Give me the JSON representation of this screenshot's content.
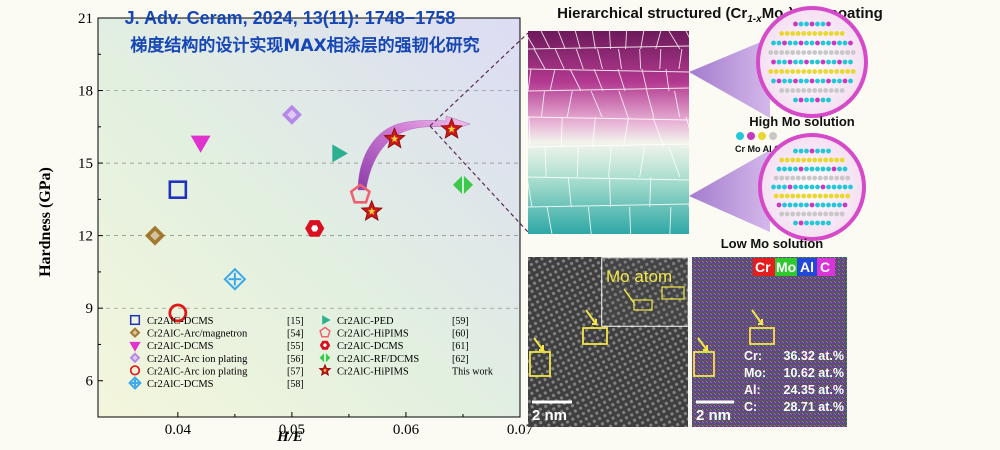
{
  "chart_data": {
    "type": "scatter",
    "header_en": "J. Adv. Ceram, 2024, 13(11): 1748−1758",
    "header_cn": "梯度结构的设计实现MAX相涂层的强韧化研究",
    "xlabel": "H/E",
    "ylabel": "Hardness (GPa)",
    "xlim": [
      0.033,
      0.07
    ],
    "ylim": [
      4.5,
      21
    ],
    "xticks": [
      "0.04",
      "0.05",
      "0.06",
      "0.07"
    ],
    "yticks": [
      "6",
      "9",
      "12",
      "15",
      "18",
      "21"
    ],
    "legend_placement": "bottom",
    "series": [
      {
        "name": "Cr2AlC-DCMS",
        "ref": "[15]",
        "marker": "square",
        "color": "#1f2fc0",
        "x": 0.04,
        "y": 13.9
      },
      {
        "name": "Cr2AlC-Arc/magnetron",
        "ref": "[54]",
        "marker": "diamond",
        "color": "#9a6a1c",
        "x": 0.038,
        "y": 12.0
      },
      {
        "name": "Cr2AlC-DCMS",
        "ref": "[55]",
        "marker": "triangle-down",
        "color": "#e01fcc",
        "x": 0.042,
        "y": 15.9
      },
      {
        "name": "Cr2AlC-Arc ion plating",
        "ref": "[56]",
        "marker": "diamond",
        "color": "#b07ee8",
        "x": 0.05,
        "y": 17.0
      },
      {
        "name": "Cr2AlC-Arc ion plating",
        "ref": "[57]",
        "marker": "circle",
        "color": "#e01818",
        "x": 0.04,
        "y": 8.8
      },
      {
        "name": "Cr2AlC-DCMS",
        "ref": "[58]",
        "marker": "diamond-plus",
        "color": "#3aa8e8",
        "x": 0.045,
        "y": 10.2
      },
      {
        "name": "Cr2AlC-PED",
        "ref": "[59]",
        "marker": "triangle-right",
        "color": "#1aa888",
        "x": 0.054,
        "y": 15.4
      },
      {
        "name": "Cr2AlC-HiPIMS",
        "ref": "[60]",
        "marker": "pentagon",
        "color": "#f06070",
        "x": 0.056,
        "y": 13.7
      },
      {
        "name": "Cr2AlC-DCMS",
        "ref": "[61]",
        "marker": "hexagon",
        "color": "#d81020",
        "x": 0.052,
        "y": 12.3
      },
      {
        "name": "Cr2AlC-RF/DCMS",
        "ref": "[62]",
        "marker": "diamond-split",
        "color": "#3cc84c",
        "x": 0.065,
        "y": 14.1
      },
      {
        "name": "Cr2AlC-HiPIMS",
        "ref": "This work",
        "marker": "star",
        "color": "#c81818",
        "points": [
          [
            0.057,
            13.0
          ],
          [
            0.059,
            16.0
          ],
          [
            0.064,
            16.4
          ]
        ]
      }
    ]
  },
  "right_panel": {
    "title_prefix": "Hierarchical structured (Cr",
    "title_sub1": "1-x",
    "title_mid": "Mo",
    "title_sub2": "x",
    "title_suffix": ")",
    "title_sub3": "2",
    "title_end": "AlC coating",
    "high_label": "High Mo solution",
    "low_label": "Low Mo solution",
    "atom_legend": "Cr Mo Al C",
    "colors": {
      "cr": "#22c8d8",
      "mo": "#c838c0",
      "al": "#e8d830",
      "c": "#c8c8c8"
    }
  },
  "tem": {
    "mo_atom_label": "Mo atom",
    "scale_left": "2 nm",
    "scale_right": "2 nm",
    "eds_labels": {
      "cr": "Cr",
      "mo": "Mo",
      "al": "Al",
      "c": "C"
    },
    "eds_colors": {
      "cr": "#e41e1e",
      "mo": "#2fc82f",
      "al": "#2248d8",
      "c": "#d834d8"
    },
    "composition": [
      {
        "element": "Cr:",
        "value": "36.32 at.%"
      },
      {
        "element": "Mo:",
        "value": "10.62 at.%"
      },
      {
        "element": "Al:",
        "value": "24.35 at.%"
      },
      {
        "element": "C:",
        "value": "28.71 at.%"
      }
    ]
  }
}
